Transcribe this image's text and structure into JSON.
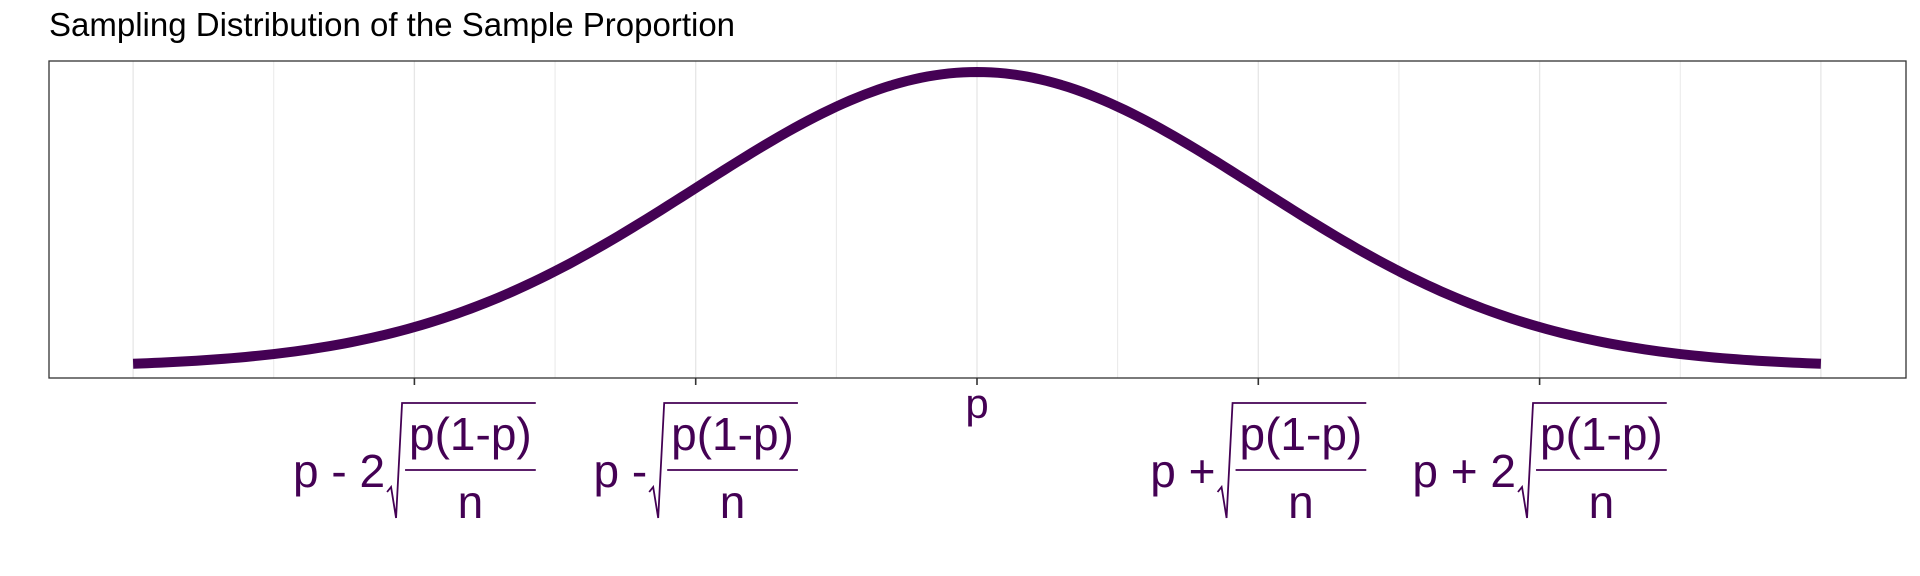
{
  "colors": {
    "curve": "#440154",
    "label": "#440154",
    "grid": "#e6e6e6",
    "panel_border": "#333333",
    "title": "#000000",
    "background": "#ffffff"
  },
  "chart_data": {
    "type": "line",
    "title": "Sampling Distribution of the Sample Proportion",
    "xlabel": "",
    "ylabel": "",
    "xlim": [
      -3,
      3
    ],
    "grid": true,
    "legend": "none",
    "x_ticks": [
      {
        "x": -2,
        "prefix": "p - 2",
        "numerator": "p(1-p)",
        "denominator": "n"
      },
      {
        "x": -1,
        "prefix": "p - ",
        "numerator": "p(1-p)",
        "denominator": "n"
      },
      {
        "x": 0,
        "label": "p"
      },
      {
        "x": 1,
        "prefix": "p + ",
        "numerator": "p(1-p)",
        "denominator": "n"
      },
      {
        "x": 2,
        "prefix": "p + 2",
        "numerator": "p(1-p)",
        "denominator": "n"
      }
    ],
    "series": [
      {
        "x": [
          -3.0,
          -2.75,
          -2.5,
          -2.25,
          -2.0,
          -1.75,
          -1.5,
          -1.25,
          -1.0,
          -0.75,
          -0.5,
          -0.25,
          0.0,
          0.25,
          0.5,
          0.75,
          1.0,
          1.25,
          1.5,
          1.75,
          2.0,
          2.25,
          2.5,
          2.75,
          3.0
        ],
        "y": [
          0.0044,
          0.0091,
          0.0175,
          0.0317,
          0.054,
          0.0863,
          0.1295,
          0.1826,
          0.242,
          0.3011,
          0.3521,
          0.3867,
          0.3989,
          0.3867,
          0.3521,
          0.3011,
          0.242,
          0.1826,
          0.1295,
          0.0863,
          0.054,
          0.0317,
          0.0175,
          0.0091,
          0.0044
        ]
      }
    ]
  }
}
